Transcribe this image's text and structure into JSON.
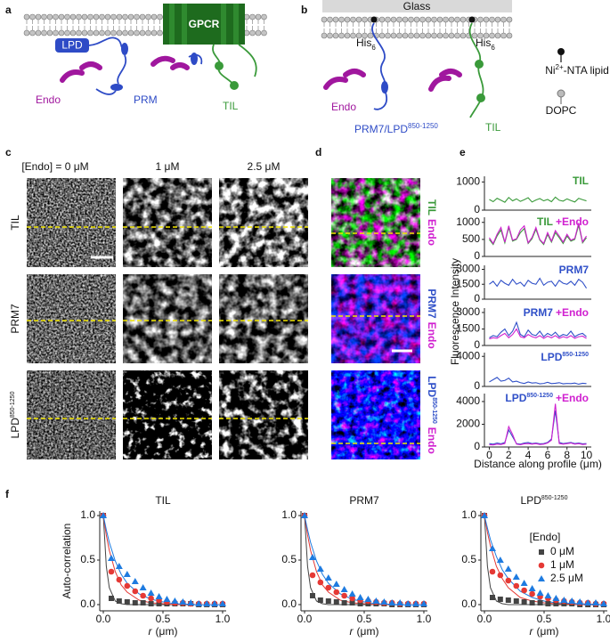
{
  "panel_labels": [
    "a",
    "b",
    "c",
    "d",
    "e",
    "f"
  ],
  "diagram_a": {
    "gpcr": "GPCR",
    "lpd": "LPD",
    "endo": "Endo",
    "prm": "PRM",
    "til": "TIL"
  },
  "diagram_b": {
    "glass": "Glass",
    "his_tags": [
      {
        "text": "His",
        "sub": "6"
      },
      {
        "text": "His",
        "sub": "6"
      }
    ],
    "endo": "Endo",
    "construct": {
      "text": "PRM7/LPD",
      "sup": "850-1250"
    },
    "til": "TIL",
    "legend": [
      {
        "text": "Ni",
        "sup": "2+",
        "rest": "-NTA lipid"
      },
      {
        "text": "DOPC"
      }
    ]
  },
  "micrographs": {
    "columns": [
      "[Endo] = 0 μM",
      "1 μM",
      "2.5 μM"
    ],
    "rows": [
      {
        "label": "TIL"
      },
      {
        "label": "PRM7"
      },
      {
        "label": "LPD",
        "sup": "850-1250"
      }
    ],
    "overlays": [
      {
        "label": "TIL",
        "color": "#3a9a3a",
        "endo": "Endo"
      },
      {
        "label": "PRM7",
        "color": "#3050c8",
        "endo": "Endo"
      },
      {
        "label": "LPD",
        "sup": "850-1250",
        "color": "#3050c8",
        "endo": "Endo"
      }
    ],
    "endo_color": "#d020d0"
  },
  "chart_data": [
    {
      "type": "line",
      "ylabel": "Fluorescence Intensity",
      "x": [
        0,
        0.4,
        0.8,
        1.2,
        1.6,
        2,
        2.4,
        2.8,
        3.2,
        3.6,
        4,
        4.4,
        4.8,
        5.2,
        5.6,
        6,
        6.4,
        6.8,
        7.2,
        7.6,
        8,
        8.4,
        8.8,
        9.2,
        9.6,
        10
      ],
      "xlim": [
        -0.5,
        10.5
      ],
      "ylim": [
        0,
        1200
      ],
      "yticks": [
        0,
        1000
      ],
      "series": [
        {
          "name": "TIL",
          "color": "#3a9a3a",
          "values": [
            380,
            300,
            420,
            350,
            280,
            450,
            330,
            400,
            310,
            370,
            440,
            290,
            360,
            410,
            330,
            380,
            300,
            460,
            350,
            320,
            400,
            340,
            290,
            420,
            370,
            330
          ]
        }
      ]
    },
    {
      "type": "line",
      "x": [
        0,
        0.4,
        0.8,
        1.2,
        1.6,
        2,
        2.4,
        2.8,
        3.2,
        3.6,
        4,
        4.4,
        4.8,
        5.2,
        5.6,
        6,
        6.4,
        6.8,
        7.2,
        7.6,
        8,
        8.4,
        8.8,
        9.2,
        9.6,
        10
      ],
      "xlim": [
        -0.5,
        10.5
      ],
      "ylim": [
        0,
        1150
      ],
      "yticks": [
        0,
        500,
        1000
      ],
      "series": [
        {
          "name": "TIL",
          "color": "#3a9a3a",
          "values": [
            500,
            350,
            600,
            780,
            400,
            850,
            450,
            500,
            700,
            820,
            380,
            520,
            800,
            480,
            350,
            650,
            420,
            700,
            550,
            380,
            600,
            450,
            500,
            920,
            400,
            550
          ]
        },
        {
          "name": "+Endo",
          "color": "#d020d0",
          "values": [
            550,
            380,
            650,
            850,
            420,
            900,
            480,
            520,
            780,
            900,
            400,
            560,
            850,
            500,
            380,
            700,
            450,
            760,
            600,
            420,
            650,
            480,
            530,
            980,
            430,
            600
          ]
        }
      ]
    },
    {
      "type": "line",
      "x": [
        0,
        0.4,
        0.8,
        1.2,
        1.6,
        2,
        2.4,
        2.8,
        3.2,
        3.6,
        4,
        4.4,
        4.8,
        5.2,
        5.6,
        6,
        6.4,
        6.8,
        7.2,
        7.6,
        8,
        8.4,
        8.8,
        9.2,
        9.6,
        10
      ],
      "xlim": [
        -0.5,
        10.5
      ],
      "ylim": [
        0,
        3400
      ],
      "yticks": [
        0,
        1500,
        3000
      ],
      "series": [
        {
          "name": "PRM7",
          "color": "#3050c8",
          "values": [
            1500,
            1800,
            1300,
            1900,
            1600,
            1400,
            2000,
            1500,
            1700,
            1300,
            1900,
            1600,
            1500,
            2100,
            1400,
            1700,
            1800,
            1300,
            1900,
            1600,
            1500,
            1800,
            1400,
            2000,
            1700,
            1100
          ]
        }
      ]
    },
    {
      "type": "line",
      "x": [
        0,
        0.4,
        0.8,
        1.2,
        1.6,
        2,
        2.4,
        2.8,
        3.2,
        3.6,
        4,
        4.4,
        4.8,
        5.2,
        5.6,
        6,
        6.4,
        6.8,
        7.2,
        7.6,
        8,
        8.4,
        8.8,
        9.2,
        9.6,
        10
      ],
      "xlim": [
        -0.5,
        10.5
      ],
      "ylim": [
        0,
        3400
      ],
      "yticks": [
        0,
        1500,
        3000
      ],
      "series": [
        {
          "name": "PRM7",
          "color": "#3050c8",
          "values": [
            700,
            900,
            800,
            1200,
            1500,
            900,
            1300,
            2100,
            1000,
            800,
            1400,
            1000,
            900,
            1300,
            800,
            1100,
            900,
            1200,
            800,
            1000,
            900,
            1300,
            800,
            1000,
            1100,
            800
          ]
        },
        {
          "name": "+Endo",
          "color": "#d020d0",
          "values": [
            600,
            700,
            650,
            900,
            1100,
            700,
            1000,
            1500,
            800,
            700,
            1000,
            800,
            700,
            900,
            650,
            850,
            700,
            900,
            650,
            800,
            700,
            900,
            650,
            800,
            850,
            650
          ]
        }
      ]
    },
    {
      "type": "line",
      "x": [
        0,
        0.4,
        0.8,
        1.2,
        1.6,
        2,
        2.4,
        2.8,
        3.2,
        3.6,
        4,
        4.4,
        4.8,
        5.2,
        5.6,
        6,
        6.4,
        6.8,
        7.2,
        7.6,
        8,
        8.4,
        8.8,
        9.2,
        9.6,
        10
      ],
      "xlim": [
        -0.5,
        10.5
      ],
      "ylim": [
        0,
        4500
      ],
      "yticks": [
        0,
        4000
      ],
      "series": [
        {
          "name": "LPD",
          "name_sup": "850-1250",
          "color": "#3050c8",
          "values": [
            600,
            900,
            1200,
            700,
            800,
            1100,
            600,
            700,
            500,
            400,
            600,
            450,
            500,
            350,
            400,
            550,
            380,
            420,
            500,
            350,
            400,
            380,
            450,
            300,
            420,
            380
          ]
        }
      ]
    },
    {
      "type": "line",
      "xlabel": "Distance along profile (μm)",
      "x": [
        0,
        0.4,
        0.8,
        1.2,
        1.6,
        2,
        2.4,
        2.8,
        3.2,
        3.6,
        4,
        4.4,
        4.8,
        5.2,
        5.6,
        6,
        6.4,
        6.8,
        7.2,
        7.6,
        8,
        8.4,
        8.8,
        9.2,
        9.6,
        10
      ],
      "xlim": [
        -0.5,
        10.5
      ],
      "ylim": [
        0,
        4700
      ],
      "yticks": [
        0,
        2000,
        4000
      ],
      "xticks": [
        0,
        2,
        4,
        6,
        8,
        10
      ],
      "series": [
        {
          "name": "LPD",
          "name_sup": "850-1250",
          "color": "#3050c8",
          "values": [
            300,
            250,
            350,
            280,
            400,
            1500,
            900,
            300,
            250,
            350,
            400,
            300,
            350,
            280,
            300,
            400,
            700,
            3200,
            400,
            300,
            350,
            400,
            300,
            350,
            280,
            300
          ]
        },
        {
          "name": "+Endo",
          "color": "#d020d0",
          "values": [
            200,
            180,
            250,
            220,
            300,
            1800,
            1100,
            250,
            200,
            280,
            300,
            250,
            300,
            220,
            250,
            350,
            600,
            3800,
            300,
            250,
            300,
            350,
            250,
            300,
            220,
            250
          ]
        }
      ]
    },
    {
      "type": "scatter",
      "title": "TIL",
      "ylabel": "Auto-correlation",
      "xlabel": "r",
      "xlabel_unit": "(μm)",
      "x": [
        0,
        0.067,
        0.133,
        0.2,
        0.267,
        0.333,
        0.4,
        0.467,
        0.533,
        0.6,
        0.667,
        0.733,
        0.8,
        0.867,
        0.933,
        1
      ],
      "fit_x": [
        0,
        0.025,
        0.05,
        0.1,
        0.15,
        0.2,
        0.3,
        0.4,
        0.5,
        0.6,
        0.8,
        1
      ],
      "xlim": [
        -0.03,
        1.03
      ],
      "ylim": [
        -0.07,
        1.05
      ],
      "xticks": [
        {
          "value": 0,
          "label": "0.0"
        },
        {
          "value": 0.5,
          "label": "0.5"
        },
        {
          "value": 1,
          "label": "1.0"
        }
      ],
      "yticks": [
        {
          "value": 0,
          "label": "0.0"
        },
        {
          "value": 0.5,
          "label": "0.5"
        },
        {
          "value": 1,
          "label": "1.0"
        }
      ],
      "series": [
        {
          "marker": "square",
          "color": "#444444",
          "values": [
            1,
            0.07,
            0.04,
            0.03,
            0.02,
            0.02,
            0.01,
            0.01,
            0.01,
            0.01,
            0.01,
            0.01,
            0,
            0,
            0,
            0
          ],
          "fit_values": [
            1,
            0.43,
            0.19,
            0.04,
            0.01,
            0,
            0,
            0,
            0,
            0,
            0,
            0
          ]
        },
        {
          "marker": "circle",
          "color": "#e53935",
          "values": [
            1,
            0.37,
            0.28,
            0.21,
            0.15,
            0.1,
            0.07,
            0.05,
            0.03,
            0.02,
            0.02,
            0.01,
            0.01,
            0.01,
            0.01,
            0.01
          ],
          "fit_values": [
            1,
            0.78,
            0.61,
            0.37,
            0.22,
            0.14,
            0.05,
            0.02,
            0.01,
            0,
            0,
            0
          ]
        },
        {
          "marker": "triangle",
          "color": "#1e7be0",
          "values": [
            1,
            0.52,
            0.43,
            0.34,
            0.26,
            0.19,
            0.13,
            0.09,
            0.06,
            0.04,
            0.03,
            0.02,
            0.01,
            0.01,
            0.01,
            0.01
          ],
          "fit_values": [
            1,
            0.84,
            0.7,
            0.49,
            0.34,
            0.24,
            0.12,
            0.06,
            0.03,
            0.01,
            0,
            0
          ]
        }
      ]
    },
    {
      "type": "scatter",
      "title": "PRM7",
      "xlabel": "r",
      "xlabel_unit": "(μm)",
      "x": [
        0,
        0.067,
        0.133,
        0.2,
        0.267,
        0.333,
        0.4,
        0.467,
        0.533,
        0.6,
        0.667,
        0.733,
        0.8,
        0.867,
        0.933,
        1
      ],
      "fit_x": [
        0,
        0.025,
        0.05,
        0.1,
        0.15,
        0.2,
        0.3,
        0.4,
        0.5,
        0.6,
        0.8,
        1
      ],
      "xlim": [
        -0.03,
        1.03
      ],
      "ylim": [
        -0.07,
        1.05
      ],
      "xticks": [
        {
          "value": 0,
          "label": "0.0"
        },
        {
          "value": 0.5,
          "label": "0.5"
        },
        {
          "value": 1,
          "label": "1.0"
        }
      ],
      "yticks": [
        {
          "value": 0,
          "label": "0.0"
        },
        {
          "value": 0.5,
          "label": "0.5"
        },
        {
          "value": 1,
          "label": "1.0"
        }
      ],
      "series": [
        {
          "marker": "square",
          "color": "#444444",
          "values": [
            1,
            0.1,
            0.05,
            0.04,
            0.03,
            0.02,
            0.02,
            0.01,
            0.01,
            0.01,
            0.01,
            0,
            0,
            0,
            0,
            0
          ],
          "fit_values": [
            1,
            0.43,
            0.19,
            0.04,
            0.01,
            0,
            0,
            0,
            0,
            0,
            0,
            0
          ]
        },
        {
          "marker": "circle",
          "color": "#e53935",
          "values": [
            1,
            0.33,
            0.25,
            0.19,
            0.14,
            0.1,
            0.07,
            0.05,
            0.04,
            0.03,
            0.02,
            0.02,
            0.01,
            0.01,
            0.01,
            0.01
          ],
          "fit_values": [
            1,
            0.78,
            0.61,
            0.37,
            0.22,
            0.14,
            0.05,
            0.02,
            0.01,
            0,
            0,
            0
          ]
        },
        {
          "marker": "triangle",
          "color": "#1e7be0",
          "values": [
            1,
            0.53,
            0.4,
            0.3,
            0.23,
            0.17,
            0.12,
            0.08,
            0.06,
            0.04,
            0.03,
            0.02,
            0.02,
            0.01,
            0.01,
            0.01
          ],
          "fit_values": [
            1,
            0.84,
            0.7,
            0.49,
            0.34,
            0.24,
            0.12,
            0.06,
            0.03,
            0.01,
            0,
            0
          ]
        }
      ]
    },
    {
      "type": "scatter",
      "title": "LPD",
      "title_sup": "850-1250",
      "xlabel": "r",
      "xlabel_unit": "(μm)",
      "legend_title": "[Endo]",
      "x": [
        0,
        0.067,
        0.133,
        0.2,
        0.267,
        0.333,
        0.4,
        0.467,
        0.533,
        0.6,
        0.667,
        0.733,
        0.8,
        0.867,
        0.933,
        1
      ],
      "fit_x": [
        0,
        0.025,
        0.05,
        0.1,
        0.15,
        0.2,
        0.3,
        0.4,
        0.5,
        0.6,
        0.8,
        1
      ],
      "xlim": [
        -0.03,
        1.03
      ],
      "ylim": [
        -0.07,
        1.05
      ],
      "xticks": [
        {
          "value": 0,
          "label": "0.0"
        },
        {
          "value": 0.5,
          "label": "0.5"
        },
        {
          "value": 1,
          "label": "1.0"
        }
      ],
      "yticks": [
        {
          "value": 0,
          "label": "0.0"
        },
        {
          "value": 0.5,
          "label": "0.5"
        },
        {
          "value": 1,
          "label": "1.0"
        }
      ],
      "series": [
        {
          "name": "0 μM",
          "marker": "square",
          "color": "#444444",
          "values": [
            1,
            0.08,
            0.06,
            0.05,
            0.04,
            0.03,
            0.02,
            0.02,
            0.01,
            0.01,
            0.01,
            0.01,
            0,
            0,
            0,
            0
          ],
          "fit_values": [
            1,
            0.43,
            0.19,
            0.04,
            0.01,
            0,
            0,
            0,
            0,
            0,
            0,
            0
          ]
        },
        {
          "name": "1 μM",
          "marker": "circle",
          "color": "#e53935",
          "values": [
            1,
            0.37,
            0.33,
            0.27,
            0.21,
            0.16,
            0.12,
            0.09,
            0.07,
            0.05,
            0.04,
            0.03,
            0.02,
            0.02,
            0.01,
            0.01
          ],
          "fit_values": [
            1,
            0.81,
            0.66,
            0.43,
            0.29,
            0.19,
            0.08,
            0.04,
            0.02,
            0.01,
            0,
            0
          ]
        },
        {
          "name": "2.5 μM",
          "marker": "triangle",
          "color": "#1e7be0",
          "values": [
            1,
            0.63,
            0.5,
            0.4,
            0.31,
            0.24,
            0.18,
            0.13,
            0.1,
            0.07,
            0.05,
            0.04,
            0.03,
            0.02,
            0.02,
            0.01
          ],
          "fit_values": [
            1,
            0.86,
            0.73,
            0.54,
            0.39,
            0.29,
            0.15,
            0.08,
            0.04,
            0.02,
            0.01,
            0
          ]
        }
      ]
    }
  ]
}
